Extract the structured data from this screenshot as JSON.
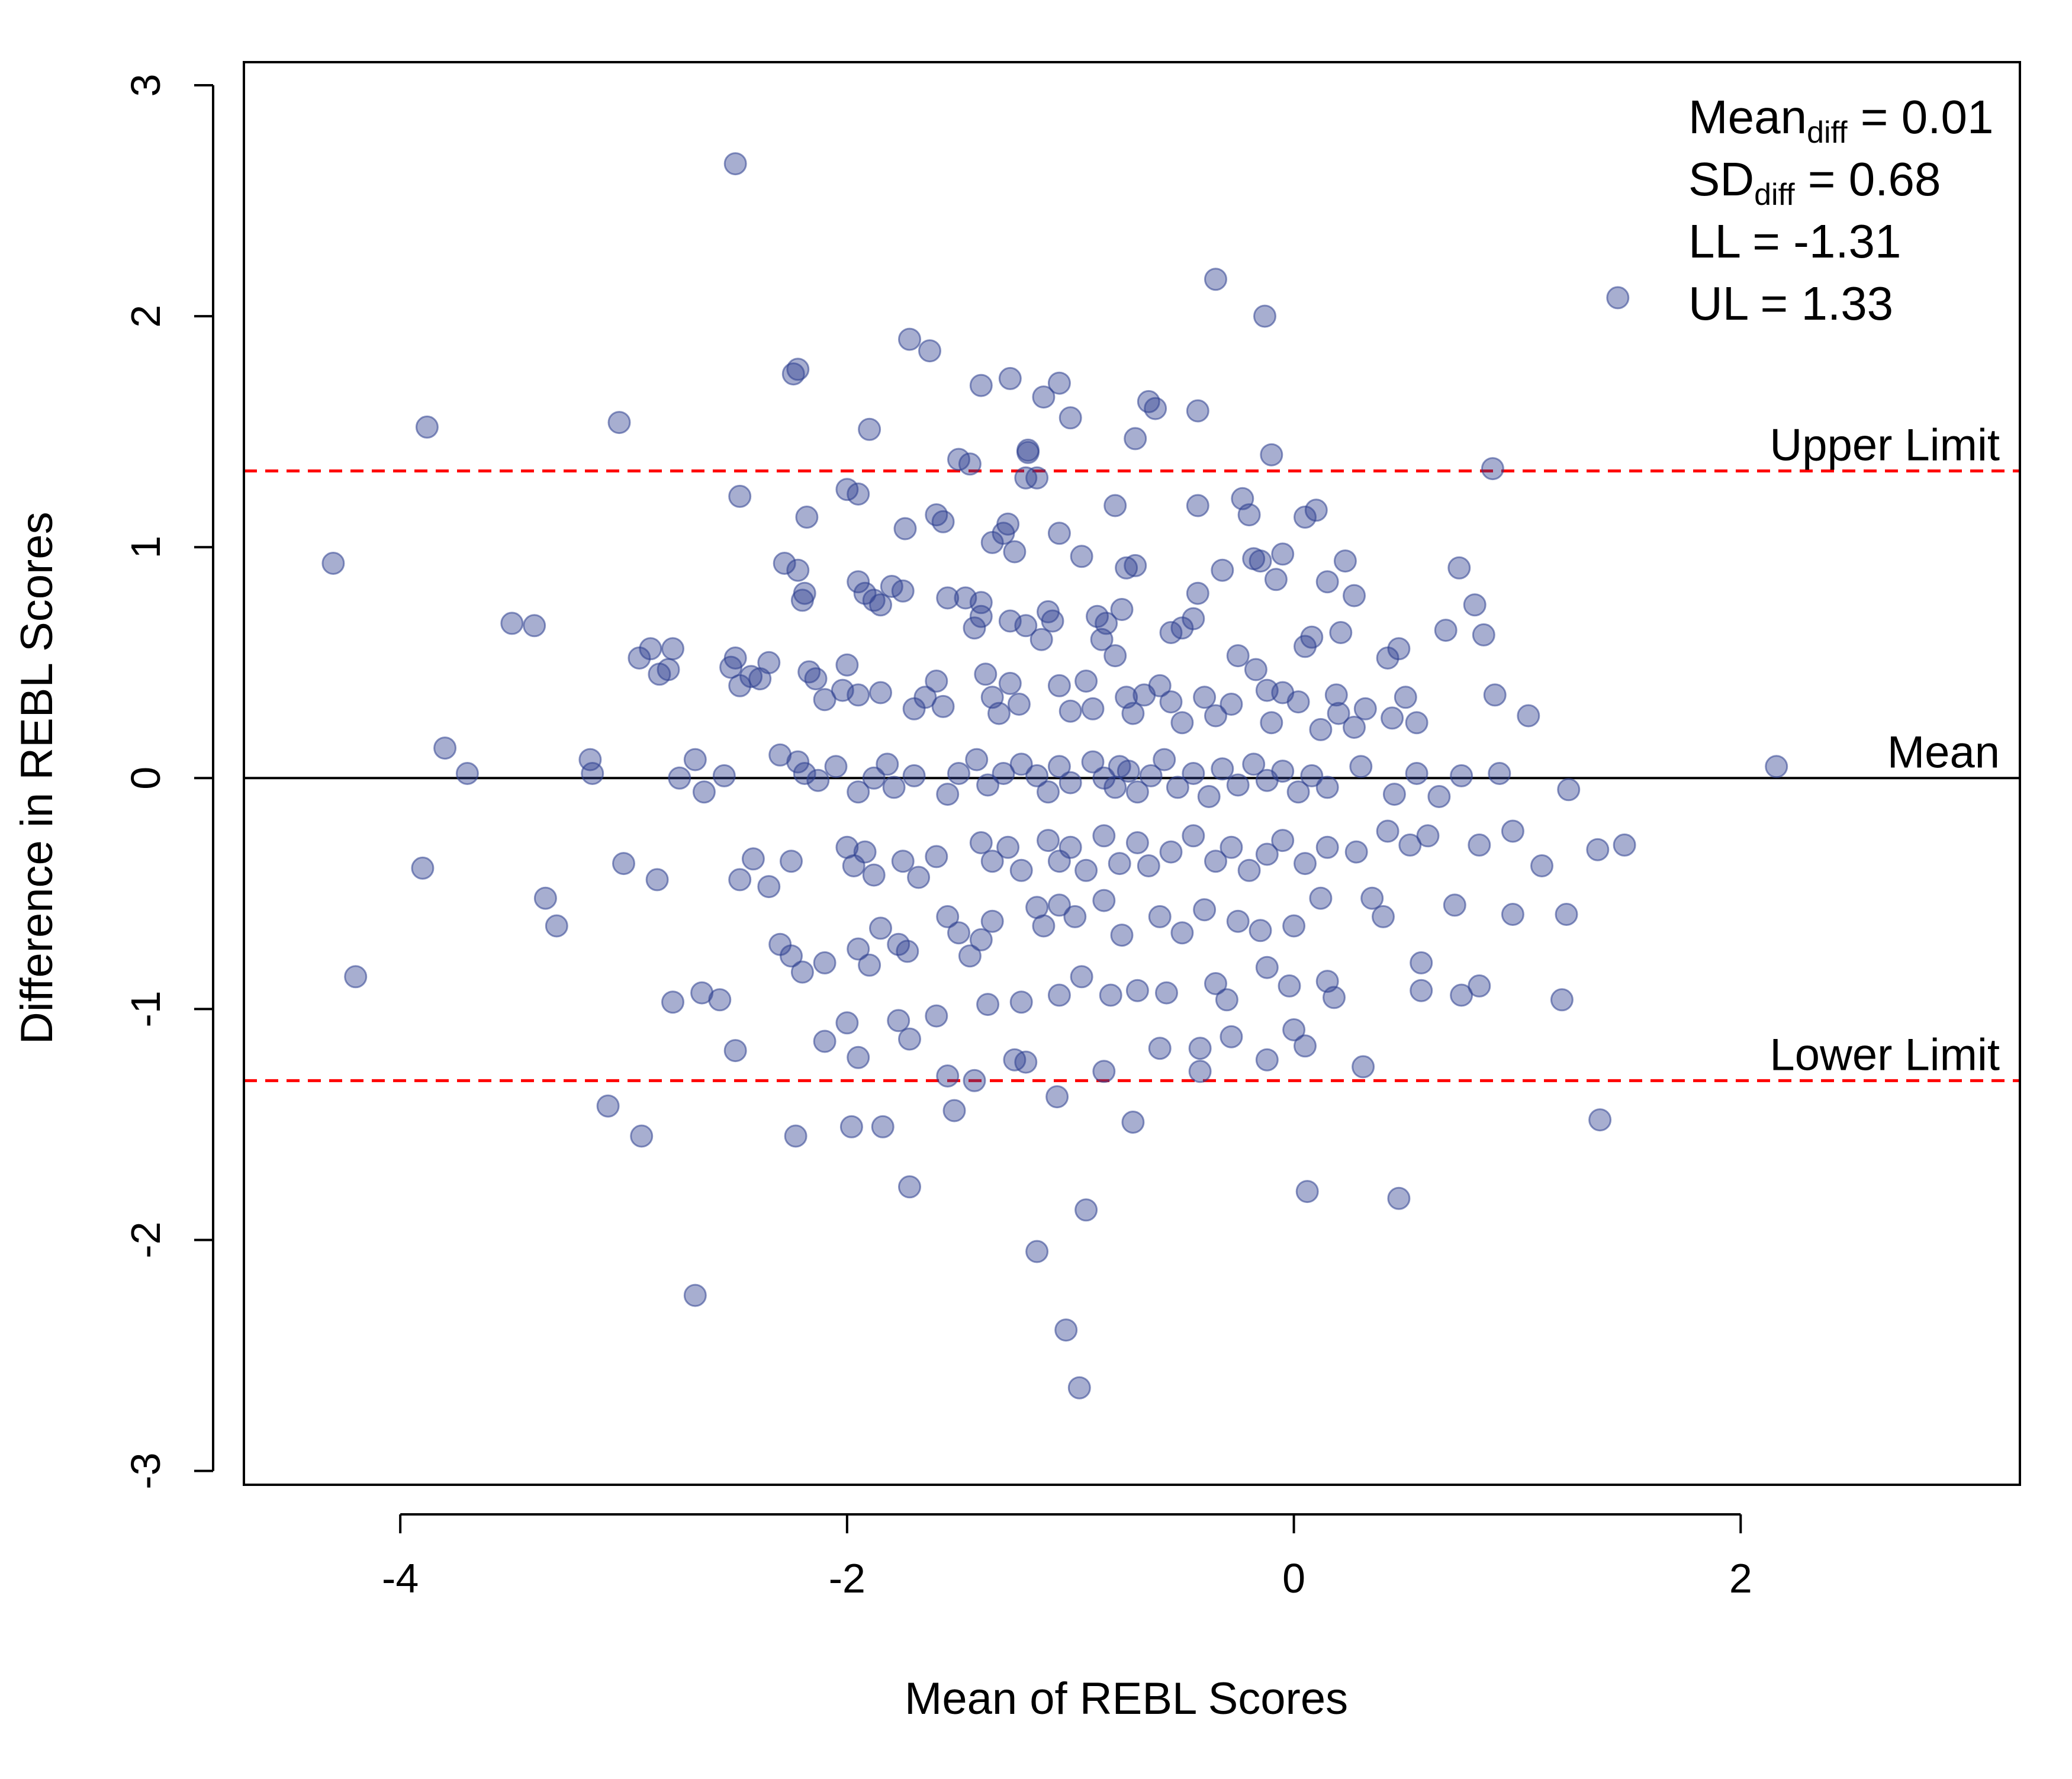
{
  "chart_data": {
    "type": "scatter",
    "title": "",
    "xlabel": "Mean of REBL Scores",
    "ylabel": "Difference in REBL Scores",
    "xlim": [
      -4.7,
      3.25
    ],
    "ylim": [
      -3.06,
      3.1
    ],
    "x_ticks": [
      -4,
      -2,
      0,
      2
    ],
    "y_ticks": [
      -3,
      -2,
      -1,
      0,
      1,
      2,
      3
    ],
    "x_tick_labels": [
      "-4",
      "-2",
      "0",
      "2"
    ],
    "y_tick_labels": [
      "-3",
      "-2",
      "-1",
      "0",
      "1",
      "2",
      "3"
    ],
    "grid": false,
    "point_color": "#2e3f8f",
    "point_opacity": 0.42,
    "reference_lines": [
      {
        "label": "Upper Limit",
        "y": 1.33,
        "color": "#ff0000",
        "style": "dashed"
      },
      {
        "label": "Mean",
        "y": 0.0,
        "color": "#000000",
        "style": "solid"
      },
      {
        "label": "Lower Limit",
        "y": -1.31,
        "color": "#ff0000",
        "style": "dashed"
      }
    ],
    "stats": [
      {
        "main": "Mean",
        "sub": "diff",
        "eq": " = 0.01"
      },
      {
        "main": "SD",
        "sub": "diff",
        "eq": " = 0.68"
      },
      {
        "main": "LL",
        "sub": "",
        "eq": " = -1.31"
      },
      {
        "main": "UL",
        "sub": "",
        "eq": " = 1.33"
      }
    ],
    "points": [
      [
        -2.5,
        2.66
      ],
      [
        -0.35,
        2.16
      ],
      [
        -0.13,
        2.0
      ],
      [
        1.45,
        2.08
      ],
      [
        -1.72,
        1.9
      ],
      [
        -1.63,
        1.85
      ],
      [
        -2.22,
        1.77
      ],
      [
        -2.24,
        1.75
      ],
      [
        -1.27,
        1.73
      ],
      [
        -1.4,
        1.7
      ],
      [
        -1.05,
        1.71
      ],
      [
        -1.12,
        1.65
      ],
      [
        -0.65,
        1.63
      ],
      [
        -0.62,
        1.6
      ],
      [
        -0.43,
        1.59
      ],
      [
        -1.0,
        1.56
      ],
      [
        -3.88,
        1.52
      ],
      [
        -3.02,
        1.54
      ],
      [
        -1.9,
        1.51
      ],
      [
        -0.71,
        1.47
      ],
      [
        -1.19,
        1.42
      ],
      [
        -1.19,
        1.41
      ],
      [
        -0.1,
        1.4
      ],
      [
        -1.5,
        1.38
      ],
      [
        -1.45,
        1.36
      ],
      [
        -1.2,
        1.3
      ],
      [
        -1.15,
        1.3
      ],
      [
        0.89,
        1.34
      ],
      [
        -2.48,
        1.22
      ],
      [
        -2.0,
        1.25
      ],
      [
        -1.95,
        1.23
      ],
      [
        -1.6,
        1.14
      ],
      [
        -1.57,
        1.11
      ],
      [
        -2.18,
        1.13
      ],
      [
        -0.8,
        1.18
      ],
      [
        -0.43,
        1.18
      ],
      [
        -0.23,
        1.21
      ],
      [
        -0.2,
        1.14
      ],
      [
        0.1,
        1.16
      ],
      [
        0.05,
        1.13
      ],
      [
        -1.28,
        1.1
      ],
      [
        -1.3,
        1.06
      ],
      [
        -1.35,
        1.02
      ],
      [
        -1.25,
        0.98
      ],
      [
        -1.05,
        1.06
      ],
      [
        -0.95,
        0.96
      ],
      [
        -1.74,
        1.08
      ],
      [
        -4.3,
        0.93
      ],
      [
        -2.28,
        0.93
      ],
      [
        -2.22,
        0.9
      ],
      [
        -2.19,
        0.8
      ],
      [
        -2.2,
        0.77
      ],
      [
        -1.95,
        0.85
      ],
      [
        -1.92,
        0.8
      ],
      [
        -1.88,
        0.77
      ],
      [
        -1.85,
        0.75
      ],
      [
        -1.8,
        0.83
      ],
      [
        -1.75,
        0.81
      ],
      [
        -1.55,
        0.78
      ],
      [
        -1.47,
        0.78
      ],
      [
        -1.4,
        0.76
      ],
      [
        -1.4,
        0.7
      ],
      [
        -1.43,
        0.65
      ],
      [
        -1.27,
        0.68
      ],
      [
        -1.2,
        0.66
      ],
      [
        -1.1,
        0.72
      ],
      [
        -1.08,
        0.68
      ],
      [
        -1.13,
        0.6
      ],
      [
        -0.88,
        0.7
      ],
      [
        -0.84,
        0.67
      ],
      [
        -0.77,
        0.73
      ],
      [
        -0.75,
        0.91
      ],
      [
        -0.71,
        0.92
      ],
      [
        -0.55,
        0.63
      ],
      [
        -0.5,
        0.65
      ],
      [
        -0.45,
        0.69
      ],
      [
        -0.43,
        0.8
      ],
      [
        -0.32,
        0.9
      ],
      [
        -0.18,
        0.95
      ],
      [
        -0.15,
        0.94
      ],
      [
        -0.08,
        0.86
      ],
      [
        -0.05,
        0.97
      ],
      [
        0.15,
        0.85
      ],
      [
        0.23,
        0.94
      ],
      [
        0.27,
        0.79
      ],
      [
        0.08,
        0.61
      ],
      [
        0.21,
        0.63
      ],
      [
        0.74,
        0.91
      ],
      [
        0.81,
        0.75
      ],
      [
        0.85,
        0.62
      ],
      [
        0.68,
        0.64
      ],
      [
        0.47,
        0.56
      ],
      [
        0.42,
        0.52
      ],
      [
        -3.5,
        0.67
      ],
      [
        -3.4,
        0.66
      ],
      [
        -2.93,
        0.52
      ],
      [
        -2.88,
        0.56
      ],
      [
        -2.84,
        0.45
      ],
      [
        -2.8,
        0.47
      ],
      [
        -2.78,
        0.56
      ],
      [
        -2.5,
        0.52
      ],
      [
        -2.52,
        0.48
      ],
      [
        -2.43,
        0.44
      ],
      [
        -2.39,
        0.43
      ],
      [
        -2.48,
        0.4
      ],
      [
        -2.35,
        0.5
      ],
      [
        -2.17,
        0.46
      ],
      [
        -2.14,
        0.43
      ],
      [
        -2.0,
        0.49
      ],
      [
        -2.02,
        0.38
      ],
      [
        -1.95,
        0.36
      ],
      [
        -2.1,
        0.34
      ],
      [
        -1.85,
        0.37
      ],
      [
        -1.7,
        0.3
      ],
      [
        -1.65,
        0.35
      ],
      [
        -1.6,
        0.42
      ],
      [
        -1.57,
        0.31
      ],
      [
        -1.38,
        0.45
      ],
      [
        -1.35,
        0.35
      ],
      [
        -1.32,
        0.28
      ],
      [
        -1.27,
        0.41
      ],
      [
        -1.23,
        0.32
      ],
      [
        -1.05,
        0.4
      ],
      [
        -1.0,
        0.29
      ],
      [
        -0.93,
        0.42
      ],
      [
        -0.9,
        0.3
      ],
      [
        -0.86,
        0.6
      ],
      [
        -0.8,
        0.53
      ],
      [
        -0.75,
        0.35
      ],
      [
        -0.72,
        0.28
      ],
      [
        -0.67,
        0.36
      ],
      [
        -0.6,
        0.4
      ],
      [
        -0.55,
        0.33
      ],
      [
        -0.5,
        0.24
      ],
      [
        -0.4,
        0.35
      ],
      [
        -0.35,
        0.27
      ],
      [
        -0.28,
        0.32
      ],
      [
        -0.25,
        0.53
      ],
      [
        -0.17,
        0.47
      ],
      [
        -0.12,
        0.38
      ],
      [
        -0.1,
        0.24
      ],
      [
        -0.05,
        0.37
      ],
      [
        0.02,
        0.33
      ],
      [
        0.05,
        0.57
      ],
      [
        0.12,
        0.21
      ],
      [
        0.2,
        0.28
      ],
      [
        0.19,
        0.36
      ],
      [
        0.27,
        0.22
      ],
      [
        0.32,
        0.3
      ],
      [
        0.5,
        0.35
      ],
      [
        0.44,
        0.26
      ],
      [
        0.55,
        0.24
      ],
      [
        0.9,
        0.36
      ],
      [
        1.05,
        0.27
      ],
      [
        -3.8,
        0.13
      ],
      [
        -3.7,
        0.02
      ],
      [
        -3.15,
        0.08
      ],
      [
        -3.14,
        0.02
      ],
      [
        -2.75,
        0.0
      ],
      [
        -2.68,
        0.08
      ],
      [
        -2.64,
        -0.06
      ],
      [
        -2.55,
        0.01
      ],
      [
        -2.3,
        0.1
      ],
      [
        -2.22,
        0.07
      ],
      [
        -2.19,
        0.02
      ],
      [
        -2.13,
        -0.01
      ],
      [
        -2.05,
        0.05
      ],
      [
        -1.95,
        -0.06
      ],
      [
        -1.88,
        0.0
      ],
      [
        -1.82,
        0.06
      ],
      [
        -1.79,
        -0.04
      ],
      [
        -1.7,
        0.01
      ],
      [
        -1.55,
        -0.07
      ],
      [
        -1.5,
        0.02
      ],
      [
        -1.42,
        0.08
      ],
      [
        -1.37,
        -0.03
      ],
      [
        -1.3,
        0.02
      ],
      [
        -1.22,
        0.06
      ],
      [
        -1.15,
        0.01
      ],
      [
        -1.1,
        -0.06
      ],
      [
        -1.05,
        0.05
      ],
      [
        -1.0,
        -0.02
      ],
      [
        -0.9,
        0.07
      ],
      [
        -0.85,
        0.0
      ],
      [
        -0.8,
        -0.04
      ],
      [
        -0.78,
        0.05
      ],
      [
        -0.74,
        0.03
      ],
      [
        -0.7,
        -0.06
      ],
      [
        -0.64,
        0.01
      ],
      [
        -0.58,
        0.08
      ],
      [
        -0.52,
        -0.04
      ],
      [
        -0.45,
        0.02
      ],
      [
        -0.38,
        -0.08
      ],
      [
        -0.32,
        0.04
      ],
      [
        -0.25,
        -0.03
      ],
      [
        -0.18,
        0.06
      ],
      [
        -0.12,
        -0.01
      ],
      [
        -0.05,
        0.03
      ],
      [
        0.02,
        -0.06
      ],
      [
        0.08,
        0.01
      ],
      [
        0.15,
        -0.04
      ],
      [
        0.3,
        0.05
      ],
      [
        0.45,
        -0.07
      ],
      [
        0.55,
        0.02
      ],
      [
        0.65,
        -0.08
      ],
      [
        0.75,
        0.01
      ],
      [
        0.92,
        0.02
      ],
      [
        2.16,
        0.05
      ],
      [
        1.23,
        -0.05
      ],
      [
        -3.9,
        -0.39
      ],
      [
        -3.0,
        -0.37
      ],
      [
        -2.85,
        -0.44
      ],
      [
        -3.35,
        -0.52
      ],
      [
        -3.3,
        -0.64
      ],
      [
        -4.2,
        -0.86
      ],
      [
        -2.42,
        -0.35
      ],
      [
        -2.48,
        -0.44
      ],
      [
        -2.35,
        -0.47
      ],
      [
        -2.25,
        -0.36
      ],
      [
        -2.0,
        -0.3
      ],
      [
        -1.97,
        -0.38
      ],
      [
        -1.92,
        -0.32
      ],
      [
        -1.88,
        -0.42
      ],
      [
        -1.75,
        -0.36
      ],
      [
        -1.68,
        -0.43
      ],
      [
        -1.6,
        -0.34
      ],
      [
        -1.4,
        -0.28
      ],
      [
        -1.35,
        -0.36
      ],
      [
        -1.28,
        -0.3
      ],
      [
        -1.22,
        -0.4
      ],
      [
        -1.1,
        -0.27
      ],
      [
        -1.05,
        -0.36
      ],
      [
        -1.0,
        -0.3
      ],
      [
        -0.93,
        -0.4
      ],
      [
        -0.85,
        -0.25
      ],
      [
        -0.78,
        -0.37
      ],
      [
        -0.7,
        -0.28
      ],
      [
        -0.65,
        -0.38
      ],
      [
        -0.55,
        -0.32
      ],
      [
        -0.45,
        -0.25
      ],
      [
        -0.35,
        -0.36
      ],
      [
        -0.28,
        -0.3
      ],
      [
        -0.2,
        -0.4
      ],
      [
        -0.12,
        -0.33
      ],
      [
        -0.05,
        -0.27
      ],
      [
        0.05,
        -0.37
      ],
      [
        0.15,
        -0.3
      ],
      [
        0.28,
        -0.32
      ],
      [
        0.42,
        -0.23
      ],
      [
        0.52,
        -0.29
      ],
      [
        0.6,
        -0.25
      ],
      [
        0.83,
        -0.29
      ],
      [
        0.98,
        -0.23
      ],
      [
        1.11,
        -0.38
      ],
      [
        1.36,
        -0.31
      ],
      [
        1.48,
        -0.29
      ],
      [
        -2.3,
        -0.72
      ],
      [
        -2.25,
        -0.77
      ],
      [
        -2.2,
        -0.84
      ],
      [
        -2.1,
        -0.8
      ],
      [
        -1.85,
        -0.65
      ],
      [
        -1.95,
        -0.74
      ],
      [
        -1.9,
        -0.81
      ],
      [
        -1.77,
        -0.72
      ],
      [
        -1.73,
        -0.75
      ],
      [
        -1.55,
        -0.6
      ],
      [
        -1.5,
        -0.67
      ],
      [
        -1.45,
        -0.77
      ],
      [
        -1.4,
        -0.7
      ],
      [
        -1.35,
        -0.62
      ],
      [
        -1.15,
        -0.56
      ],
      [
        -1.12,
        -0.64
      ],
      [
        -1.05,
        -0.55
      ],
      [
        -0.98,
        -0.6
      ],
      [
        -0.85,
        -0.53
      ],
      [
        -0.77,
        -0.68
      ],
      [
        -0.6,
        -0.6
      ],
      [
        -0.5,
        -0.67
      ],
      [
        -0.4,
        -0.57
      ],
      [
        -0.25,
        -0.62
      ],
      [
        -0.15,
        -0.66
      ],
      [
        0.0,
        -0.64
      ],
      [
        0.12,
        -0.52
      ],
      [
        0.35,
        -0.52
      ],
      [
        0.4,
        -0.6
      ],
      [
        0.57,
        -0.8
      ],
      [
        0.72,
        -0.55
      ],
      [
        0.98,
        -0.59
      ],
      [
        1.22,
        -0.59
      ],
      [
        -2.65,
        -0.93
      ],
      [
        -2.57,
        -0.96
      ],
      [
        -2.78,
        -0.97
      ],
      [
        -1.77,
        -1.05
      ],
      [
        -1.6,
        -1.03
      ],
      [
        -1.37,
        -0.98
      ],
      [
        -1.22,
        -0.97
      ],
      [
        -1.05,
        -0.94
      ],
      [
        -0.95,
        -0.86
      ],
      [
        -0.82,
        -0.94
      ],
      [
        -0.7,
        -0.92
      ],
      [
        -0.57,
        -0.93
      ],
      [
        -0.35,
        -0.89
      ],
      [
        -0.3,
        -0.96
      ],
      [
        -0.12,
        -0.82
      ],
      [
        -0.02,
        -0.9
      ],
      [
        0.15,
        -0.88
      ],
      [
        0.18,
        -0.95
      ],
      [
        0.57,
        -0.92
      ],
      [
        0.75,
        -0.94
      ],
      [
        0.83,
        -0.9
      ],
      [
        1.2,
        -0.96
      ],
      [
        -2.5,
        -1.18
      ],
      [
        -2.0,
        -1.06
      ],
      [
        -2.1,
        -1.14
      ],
      [
        -1.95,
        -1.21
      ],
      [
        -1.72,
        -1.13
      ],
      [
        -1.55,
        -1.29
      ],
      [
        -1.43,
        -1.31
      ],
      [
        -1.25,
        -1.22
      ],
      [
        -1.2,
        -1.23
      ],
      [
        -0.85,
        -1.27
      ],
      [
        -0.6,
        -1.17
      ],
      [
        -0.42,
        -1.17
      ],
      [
        -0.42,
        -1.27
      ],
      [
        -0.28,
        -1.12
      ],
      [
        -0.12,
        -1.22
      ],
      [
        0.0,
        -1.09
      ],
      [
        0.05,
        -1.16
      ],
      [
        0.31,
        -1.25
      ],
      [
        -3.07,
        -1.42
      ],
      [
        -2.92,
        -1.55
      ],
      [
        -2.23,
        -1.55
      ],
      [
        -1.98,
        -1.51
      ],
      [
        -1.84,
        -1.51
      ],
      [
        -1.52,
        -1.44
      ],
      [
        -1.06,
        -1.38
      ],
      [
        -0.72,
        -1.49
      ],
      [
        1.37,
        -1.48
      ],
      [
        -1.72,
        -1.77
      ],
      [
        -0.93,
        -1.87
      ],
      [
        0.06,
        -1.79
      ],
      [
        0.47,
        -1.82
      ],
      [
        -1.15,
        -2.05
      ],
      [
        -2.68,
        -2.24
      ],
      [
        -1.02,
        -2.39
      ],
      [
        -0.96,
        -2.64
      ]
    ]
  }
}
